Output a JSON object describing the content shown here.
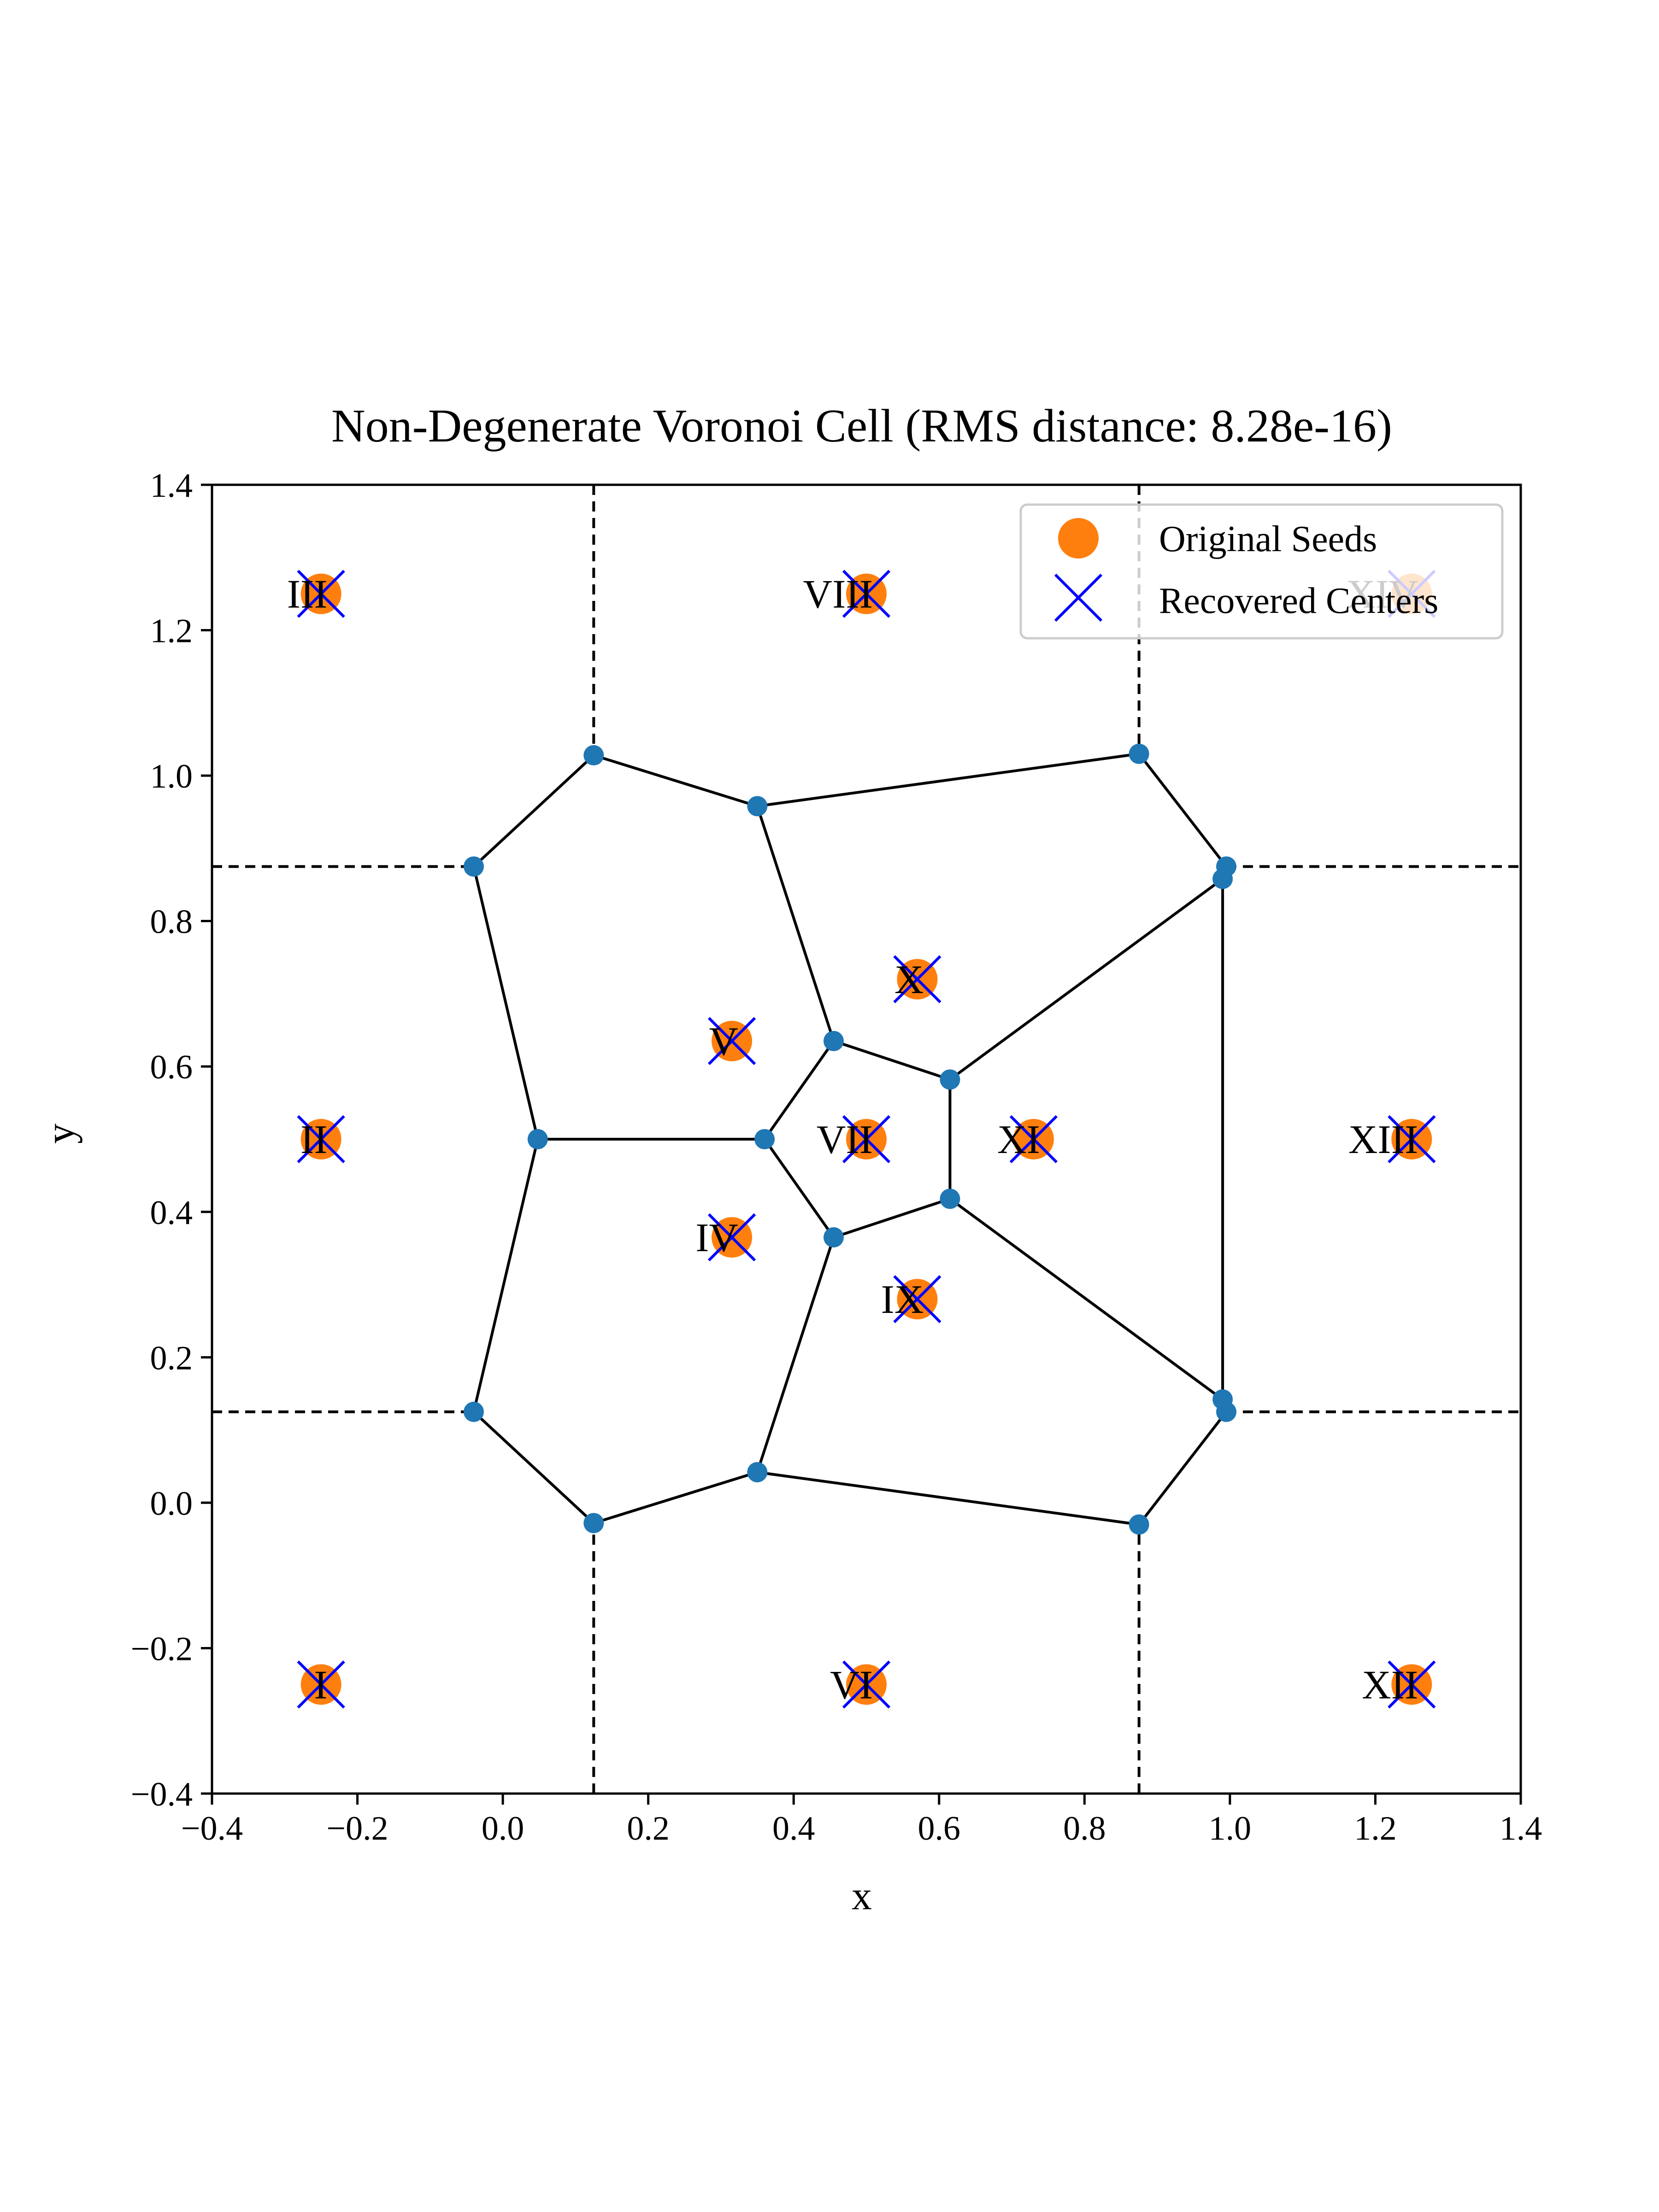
{
  "chart_data": {
    "type": "scatter",
    "title": "Non-Degenerate Voronoi Cell  (RMS distance: 8.28e-16)",
    "xlabel": "x",
    "ylabel": "y",
    "xlim": [
      -0.4,
      1.4
    ],
    "ylim": [
      -0.4,
      1.4
    ],
    "xticks": [
      "−0.4",
      "−0.2",
      "0.0",
      "0.2",
      "0.4",
      "0.6",
      "0.8",
      "1.0",
      "1.2",
      "1.4"
    ],
    "yticks": [
      "−0.4",
      "−0.2",
      "0.0",
      "0.2",
      "0.4",
      "0.6",
      "0.8",
      "1.0",
      "1.2",
      "1.4"
    ],
    "grid": false,
    "legend": {
      "placement": "upper-right",
      "entries": [
        {
          "label": "Original Seeds",
          "marker": "circle",
          "color": "#ff7f0e"
        },
        {
          "label": "Recovered Centers",
          "marker": "x",
          "color": "#0000ff"
        }
      ]
    },
    "colors": {
      "seeds": "#ff7f0e",
      "centers": "#0000ff",
      "vertices": "#1f77b4",
      "edges": "#000000"
    },
    "seeds": [
      {
        "label": "I",
        "x": -0.25,
        "y": -0.25
      },
      {
        "label": "II",
        "x": -0.25,
        "y": 0.5
      },
      {
        "label": "III",
        "x": -0.25,
        "y": 1.25
      },
      {
        "label": "IV",
        "x": 0.315,
        "y": 0.365
      },
      {
        "label": "V",
        "x": 0.315,
        "y": 0.635
      },
      {
        "label": "VI",
        "x": 0.5,
        "y": -0.25
      },
      {
        "label": "VII",
        "x": 0.5,
        "y": 0.5
      },
      {
        "label": "VIII",
        "x": 0.5,
        "y": 1.25
      },
      {
        "label": "IX",
        "x": 0.57,
        "y": 0.28
      },
      {
        "label": "X",
        "x": 0.57,
        "y": 0.72
      },
      {
        "label": "XI",
        "x": 0.73,
        "y": 0.5
      },
      {
        "label": "XII",
        "x": 1.25,
        "y": -0.25
      },
      {
        "label": "XIII",
        "x": 1.25,
        "y": 0.5
      },
      {
        "label": "XIV",
        "x": 1.25,
        "y": 1.25
      }
    ],
    "vertices": [
      [
        0.125,
        1.028
      ],
      [
        0.35,
        0.958
      ],
      [
        0.875,
        1.03
      ],
      [
        0.995,
        0.875
      ],
      [
        0.99,
        0.858
      ],
      [
        -0.04,
        0.875
      ],
      [
        0.048,
        0.5
      ],
      [
        0.36,
        0.5
      ],
      [
        0.455,
        0.635
      ],
      [
        0.615,
        0.582
      ],
      [
        0.615,
        0.418
      ],
      [
        0.455,
        0.365
      ],
      [
        -0.04,
        0.125
      ],
      [
        0.125,
        -0.028
      ],
      [
        0.35,
        0.042
      ],
      [
        0.875,
        -0.03
      ],
      [
        0.995,
        0.125
      ],
      [
        0.99,
        0.142
      ]
    ],
    "edges": [
      [
        [
          -0.04,
          0.875
        ],
        [
          0.125,
          1.028
        ]
      ],
      [
        [
          0.125,
          1.028
        ],
        [
          0.35,
          0.958
        ]
      ],
      [
        [
          0.35,
          0.958
        ],
        [
          0.875,
          1.03
        ]
      ],
      [
        [
          0.875,
          1.03
        ],
        [
          0.995,
          0.875
        ]
      ],
      [
        [
          0.995,
          0.875
        ],
        [
          0.99,
          0.858
        ]
      ],
      [
        [
          0.99,
          0.858
        ],
        [
          0.99,
          0.142
        ]
      ],
      [
        [
          0.99,
          0.142
        ],
        [
          0.995,
          0.125
        ]
      ],
      [
        [
          0.995,
          0.125
        ],
        [
          0.875,
          -0.03
        ]
      ],
      [
        [
          0.875,
          -0.03
        ],
        [
          0.35,
          0.042
        ]
      ],
      [
        [
          0.35,
          0.042
        ],
        [
          0.125,
          -0.028
        ]
      ],
      [
        [
          0.125,
          -0.028
        ],
        [
          -0.04,
          0.125
        ]
      ],
      [
        [
          -0.04,
          0.125
        ],
        [
          0.048,
          0.5
        ]
      ],
      [
        [
          0.048,
          0.5
        ],
        [
          -0.04,
          0.875
        ]
      ],
      [
        [
          0.048,
          0.5
        ],
        [
          0.36,
          0.5
        ]
      ],
      [
        [
          0.35,
          0.958
        ],
        [
          0.455,
          0.635
        ]
      ],
      [
        [
          0.455,
          0.635
        ],
        [
          0.36,
          0.5
        ]
      ],
      [
        [
          0.36,
          0.5
        ],
        [
          0.455,
          0.365
        ]
      ],
      [
        [
          0.455,
          0.365
        ],
        [
          0.35,
          0.042
        ]
      ],
      [
        [
          0.455,
          0.635
        ],
        [
          0.615,
          0.582
        ]
      ],
      [
        [
          0.615,
          0.582
        ],
        [
          0.615,
          0.418
        ]
      ],
      [
        [
          0.615,
          0.418
        ],
        [
          0.455,
          0.365
        ]
      ],
      [
        [
          0.615,
          0.582
        ],
        [
          0.99,
          0.858
        ]
      ],
      [
        [
          0.615,
          0.418
        ],
        [
          0.99,
          0.142
        ]
      ]
    ],
    "dashed_lines": [
      [
        [
          0.125,
          1.4
        ],
        [
          0.125,
          1.028
        ]
      ],
      [
        [
          0.875,
          1.4
        ],
        [
          0.875,
          1.03
        ]
      ],
      [
        [
          0.125,
          -0.4
        ],
        [
          0.125,
          -0.028
        ]
      ],
      [
        [
          0.875,
          -0.4
        ],
        [
          0.875,
          -0.03
        ]
      ],
      [
        [
          -0.4,
          0.875
        ],
        [
          -0.04,
          0.875
        ]
      ],
      [
        [
          -0.4,
          0.125
        ],
        [
          -0.04,
          0.125
        ]
      ],
      [
        [
          0.995,
          0.875
        ],
        [
          1.4,
          0.875
        ]
      ],
      [
        [
          0.995,
          0.125
        ],
        [
          1.4,
          0.125
        ]
      ]
    ]
  }
}
